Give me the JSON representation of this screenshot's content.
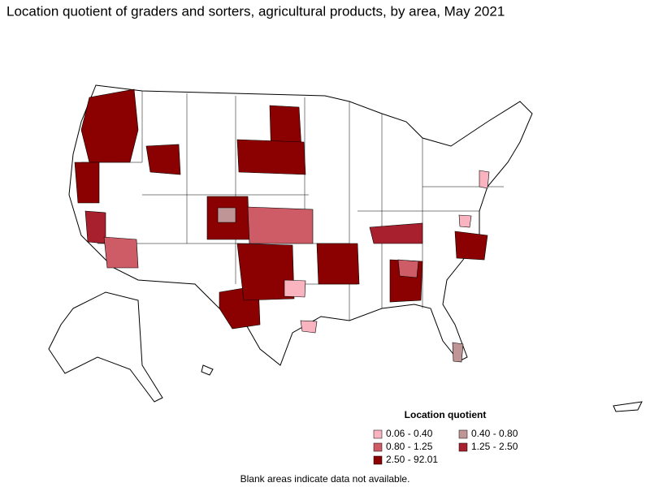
{
  "title": "Location quotient of graders and sorters, agricultural products, by area, May 2021",
  "legend": {
    "title": "Location quotient",
    "items": [
      {
        "label": "0.06 - 0.40",
        "color": "#f9b4c0"
      },
      {
        "label": "0.40 - 0.80",
        "color": "#c09595"
      },
      {
        "label": "0.80 - 1.25",
        "color": "#cd5c66"
      },
      {
        "label": "1.25 - 2.50",
        "color": "#a8202d"
      },
      {
        "label": "2.50 - 92.01",
        "color": "#8b0000"
      }
    ]
  },
  "note": "Blank areas indicate data not available."
}
